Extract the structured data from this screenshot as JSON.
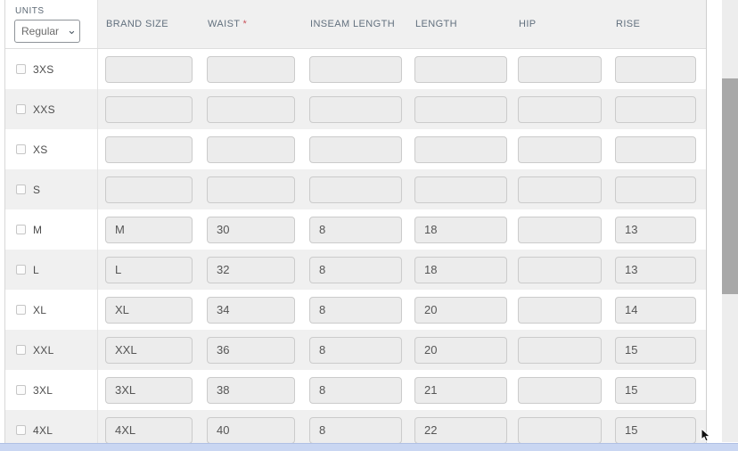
{
  "units": {
    "label": "UNITS",
    "value": "Regular",
    "options": [
      "Regular"
    ],
    "chevron_icon": "⌄"
  },
  "table": {
    "required_marker": "*",
    "columns": [
      {
        "label": "BRAND SIZE",
        "required": false
      },
      {
        "label": "WAIST",
        "required": true
      },
      {
        "label": "INSEAM LENGTH",
        "required": false
      },
      {
        "label": "LENGTH",
        "required": false
      },
      {
        "label": "HIP",
        "required": false
      },
      {
        "label": "RISE",
        "required": false
      }
    ],
    "rows": [
      {
        "size": "3XS",
        "checked": false,
        "values": [
          "",
          "",
          "",
          "",
          "",
          ""
        ]
      },
      {
        "size": "XXS",
        "checked": false,
        "values": [
          "",
          "",
          "",
          "",
          "",
          ""
        ]
      },
      {
        "size": "XS",
        "checked": false,
        "values": [
          "",
          "",
          "",
          "",
          "",
          ""
        ]
      },
      {
        "size": "S",
        "checked": false,
        "values": [
          "",
          "",
          "",
          "",
          "",
          ""
        ]
      },
      {
        "size": "M",
        "checked": false,
        "values": [
          "M",
          "30",
          "8",
          "18",
          "",
          "13"
        ]
      },
      {
        "size": "L",
        "checked": false,
        "values": [
          "L",
          "32",
          "8",
          "18",
          "",
          "13"
        ]
      },
      {
        "size": "XL",
        "checked": false,
        "values": [
          "XL",
          "34",
          "8",
          "20",
          "",
          "14"
        ]
      },
      {
        "size": "XXL",
        "checked": false,
        "values": [
          "XXL",
          "36",
          "8",
          "20",
          "",
          "15"
        ]
      },
      {
        "size": "3XL",
        "checked": false,
        "values": [
          "3XL",
          "38",
          "8",
          "21",
          "",
          "15"
        ]
      },
      {
        "size": "4XL",
        "checked": false,
        "values": [
          "4XL",
          "40",
          "8",
          "22",
          "",
          "15"
        ]
      }
    ]
  },
  "colors": {
    "required_asterisk": "#c9545c",
    "row_stripe": "#f0f0f0",
    "header_band": "#f0f0f0",
    "input_background": "#ececec",
    "vertical_scroll_thumb": "#a8a8a8",
    "horizontal_scroll_bar": "#c9d6f2"
  }
}
